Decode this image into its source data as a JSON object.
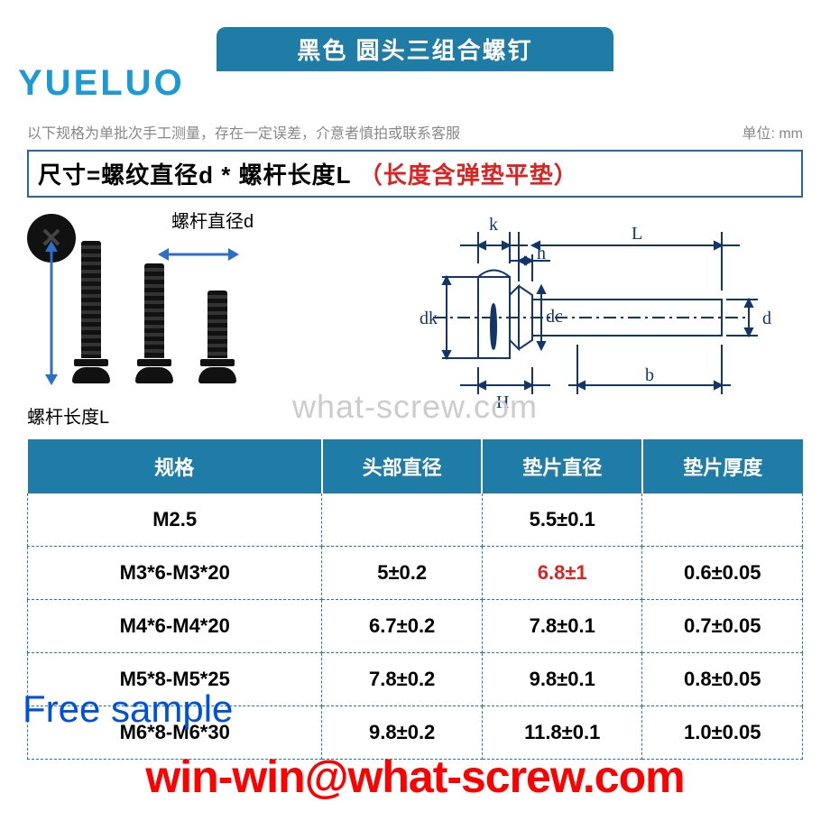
{
  "title": "黑色 圆头三组合螺钉",
  "logo": "YUELUO",
  "note": "以下规格为单批次手工测量，存在一定误差，介意者慎拍或联系客服",
  "unit": "单位: mm",
  "formula": {
    "black": "尺寸=螺纹直径d * 螺杆长度L",
    "red": "（长度含弹垫平垫）"
  },
  "labels": {
    "diameter": "螺杆直径d",
    "length": "螺杆长度L"
  },
  "tech": {
    "k": "k",
    "h": "h",
    "L": "L",
    "dk": "dk",
    "dc": "dc",
    "d": "d",
    "H": "H",
    "b": "b"
  },
  "watermark": "what-screw.com",
  "table": {
    "headers": [
      "规格",
      "头部直径",
      "垫片直径",
      "垫片厚度"
    ],
    "rows": [
      {
        "spec": "M2.5",
        "head": "",
        "washer": "5.5±0.1",
        "thick": "",
        "hl": false
      },
      {
        "spec": "M3*6-M3*20",
        "head": "5±0.2",
        "washer": "6.8±1",
        "thick": "0.6±0.05",
        "hl": true
      },
      {
        "spec": "M4*6-M4*20",
        "head": "6.7±0.2",
        "washer": "7.8±0.1",
        "thick": "0.7±0.05",
        "hl": false
      },
      {
        "spec": "M5*8-M5*25",
        "head": "7.8±0.2",
        "washer": "9.8±0.1",
        "thick": "0.8±0.05",
        "hl": false
      },
      {
        "spec": "M6*8-M6*30",
        "head": "9.8±0.2",
        "washer": "11.8±0.1",
        "thick": "1.0±0.05",
        "hl": false
      }
    ]
  },
  "free_sample": "Free sample",
  "email": "win-win@what-screw.com",
  "colors": {
    "primary": "#1e7ca6",
    "accent": "#d22",
    "arrow": "#2a6fc9",
    "link": "#0050e0"
  }
}
